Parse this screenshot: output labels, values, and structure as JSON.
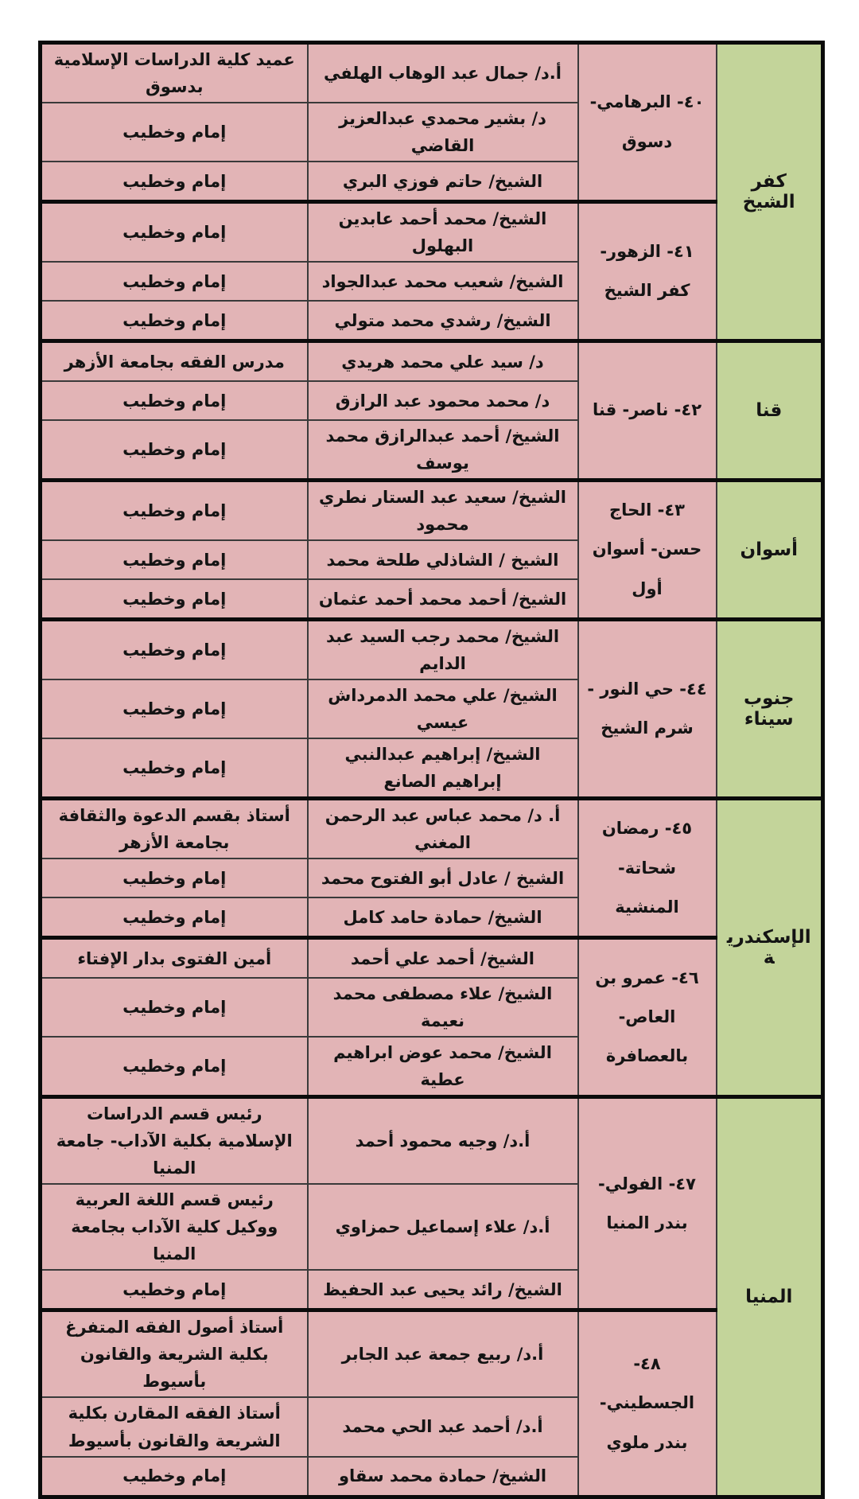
{
  "page": {
    "background": "#ffffff"
  },
  "table": {
    "colors": {
      "cell_pink": "#e2b4b6",
      "governorate_green": "#c3d49a",
      "border_thick": "#0b0b0b",
      "border_thin": "#3a3a3a",
      "text": "#141414"
    },
    "governorates": [
      {
        "name": "كفر الشيخ",
        "sections": [
          {
            "location": "٤٠- البرهامي- دسوق",
            "rows": [
              {
                "name": "أ.د/ جمال عبد الوهاب الهلفي",
                "role": "عميد كلية الدراسات الإسلامية بدسوق"
              },
              {
                "name": "د/ بشير محمدي عبدالعزيز القاضي",
                "role": "إمام وخطيب"
              },
              {
                "name": "الشيخ/ حاتم فوزي البري",
                "role": "إمام وخطيب"
              }
            ]
          },
          {
            "location": "٤١- الزهور- كفر الشيخ",
            "rows": [
              {
                "name": "الشيخ/ محمد أحمد عابدين البهلول",
                "role": "إمام وخطيب"
              },
              {
                "name": "الشيخ/ شعيب محمد عبدالجواد",
                "role": "إمام وخطيب"
              },
              {
                "name": "الشيخ/ رشدي محمد متولي",
                "role": "إمام وخطيب"
              }
            ]
          }
        ]
      },
      {
        "name": "قنا",
        "sections": [
          {
            "location": "٤٢- ناصر- قنا",
            "rows": [
              {
                "name": "د/ سيد علي محمد هريدي",
                "role": "مدرس الفقه بجامعة الأزهر"
              },
              {
                "name": "د/ محمد محمود عبد الرازق",
                "role": "إمام وخطيب"
              },
              {
                "name": "الشيخ/ أحمد عبدالرازق محمد يوسف",
                "role": "إمام وخطيب"
              }
            ]
          }
        ]
      },
      {
        "name": "أسوان",
        "sections": [
          {
            "location": "٤٣- الحاج حسن- أسوان أول",
            "rows": [
              {
                "name": "الشيخ/ سعيد عبد الستار نطري محمود",
                "role": "إمام وخطيب"
              },
              {
                "name": "الشيخ / الشاذلي طلحة محمد",
                "role": "إمام وخطيب"
              },
              {
                "name": "الشيخ/ أحمد محمد أحمد عثمان",
                "role": "إمام وخطيب"
              }
            ]
          }
        ]
      },
      {
        "name": "جنوب سيناء",
        "sections": [
          {
            "location": "٤٤- حي النور - شرم الشيخ",
            "rows": [
              {
                "name": "الشيخ/ محمد رجب السيد عبد الدايم",
                "role": "إمام وخطيب"
              },
              {
                "name": "الشيخ/ علي محمد الدمرداش عيسي",
                "role": "إمام وخطيب"
              },
              {
                "name": "الشيخ/ إبراهيم عبدالنبي إبراهيم الصانع",
                "role": "إمام وخطيب"
              }
            ]
          }
        ]
      },
      {
        "name": "الإسكندرية",
        "sections": [
          {
            "location": "٤٥- رمضان شحاتة- المنشية",
            "rows": [
              {
                "name": "أ. د/ محمد عباس عبد الرحمن المغني",
                "role": "أستاذ بقسم الدعوة والثقافة بجامعة الأزهر"
              },
              {
                "name": "الشيخ / عادل أبو الفتوح محمد",
                "role": "إمام وخطيب"
              },
              {
                "name": "الشيخ/ حمادة حامد كامل",
                "role": "إمام وخطيب"
              }
            ]
          },
          {
            "location": "٤٦- عمرو بن العاص- بالعصافرة",
            "rows": [
              {
                "name": "الشيخ/ أحمد علي أحمد",
                "role": "أمين الفتوى بدار الإفتاء"
              },
              {
                "name": "الشيخ/ علاء مصطفى محمد نعيمة",
                "role": "إمام وخطيب"
              },
              {
                "name": "الشيخ/ محمد عوض ابراهيم عطية",
                "role": "إمام وخطيب"
              }
            ]
          }
        ]
      },
      {
        "name": "المنيا",
        "sections": [
          {
            "location": "٤٧- الفولي- بندر المنيا",
            "rows": [
              {
                "name": "أ.د/ وجيه محمود أحمد",
                "role": "رئيس قسم الدراسات الإسلامية بكلية الآداب- جامعة المنيا"
              },
              {
                "name": "أ.د/ علاء إسماعيل حمزاوي",
                "role": "رئيس قسم اللغة العربية ووكيل كلية الآداب بجامعة المنيا"
              },
              {
                "name": "الشيخ/ رائد يحيى عبد الحفيظ",
                "role": "إمام وخطيب"
              }
            ]
          },
          {
            "location": "٤٨- الجسطيني- بندر ملوي",
            "rows": [
              {
                "name": "أ.د/ ربيع جمعة عبد الجابر",
                "role": "أستاذ أصول الفقه المتفرغ بكلية الشريعة والقانون بأسيوط"
              },
              {
                "name": "أ.د/ أحمد عبد الحي محمد",
                "role": "أستاذ الفقه المقارن بكلية الشريعة والقانون بأسيوط"
              },
              {
                "name": "الشيخ/ حمادة محمد سقاو",
                "role": "إمام وخطيب"
              }
            ]
          }
        ]
      }
    ]
  }
}
